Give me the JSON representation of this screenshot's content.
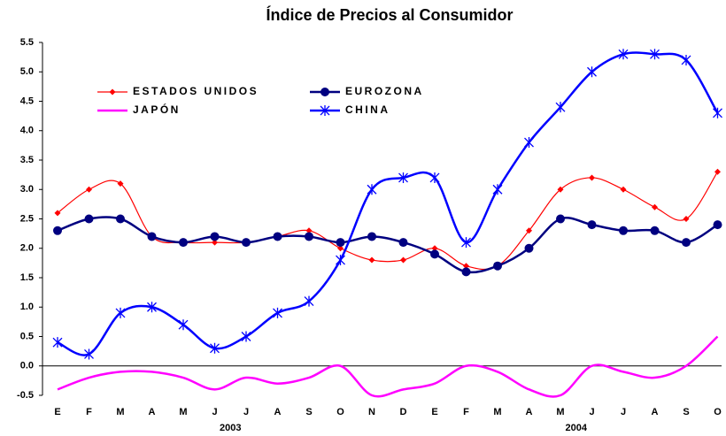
{
  "chart_data": {
    "type": "line",
    "title": "Índice de Precios al Consumidor",
    "categories": [
      "E",
      "F",
      "M",
      "A",
      "M",
      "J",
      "J",
      "A",
      "S",
      "O",
      "N",
      "D",
      "E",
      "F",
      "M",
      "A",
      "M",
      "J",
      "J",
      "A",
      "S",
      "O"
    ],
    "groups": [
      {
        "label": "2003",
        "start": 0,
        "end": 11
      },
      {
        "label": "2004",
        "start": 12,
        "end": 21
      }
    ],
    "ylim": [
      -0.5,
      5.5
    ],
    "yticks": [
      -0.5,
      {
        "value": 0,
        "label": "0.0"
      },
      0.5,
      {
        "value": 1,
        "label": "1.0"
      },
      1.5,
      {
        "value": 2,
        "label": "2.0"
      },
      2.5,
      {
        "value": 3,
        "label": "3.0"
      },
      3.5,
      {
        "value": 4,
        "label": "4.0"
      },
      4.5,
      {
        "value": 5,
        "label": "5.0"
      },
      5.5
    ],
    "grid": false,
    "series": [
      {
        "name": "ESTADOS UNIDOS",
        "color": "#ff0000",
        "marker": "diamond",
        "values": [
          2.6,
          3.0,
          3.1,
          2.2,
          2.1,
          2.1,
          2.1,
          2.2,
          2.3,
          2.0,
          1.8,
          1.8,
          2.0,
          1.7,
          1.7,
          2.3,
          3.0,
          3.2,
          3.0,
          2.7,
          2.5,
          3.3
        ]
      },
      {
        "name": "EUROZONA",
        "color": "#000080",
        "marker": "circle",
        "values": [
          2.3,
          2.5,
          2.5,
          2.2,
          2.1,
          2.2,
          2.1,
          2.2,
          2.2,
          2.1,
          2.2,
          2.1,
          1.9,
          1.6,
          1.7,
          2.0,
          2.5,
          2.4,
          2.3,
          2.3,
          2.1,
          2.4
        ]
      },
      {
        "name": "JAPÓN",
        "color": "#ff00ff",
        "marker": "none",
        "values": [
          -0.4,
          -0.2,
          -0.1,
          -0.1,
          -0.2,
          -0.4,
          -0.2,
          -0.3,
          -0.2,
          0.0,
          -0.5,
          -0.4,
          -0.3,
          0.0,
          -0.1,
          -0.4,
          -0.5,
          0.0,
          -0.1,
          -0.2,
          0.0,
          0.5
        ]
      },
      {
        "name": "CHINA",
        "color": "#0000ff",
        "marker": "star",
        "values": [
          0.4,
          0.2,
          0.9,
          1.0,
          0.7,
          0.3,
          0.5,
          0.9,
          1.1,
          1.8,
          3.0,
          3.2,
          3.2,
          2.1,
          3.0,
          3.8,
          4.4,
          5.0,
          5.3,
          5.3,
          5.2,
          4.3
        ]
      }
    ]
  }
}
